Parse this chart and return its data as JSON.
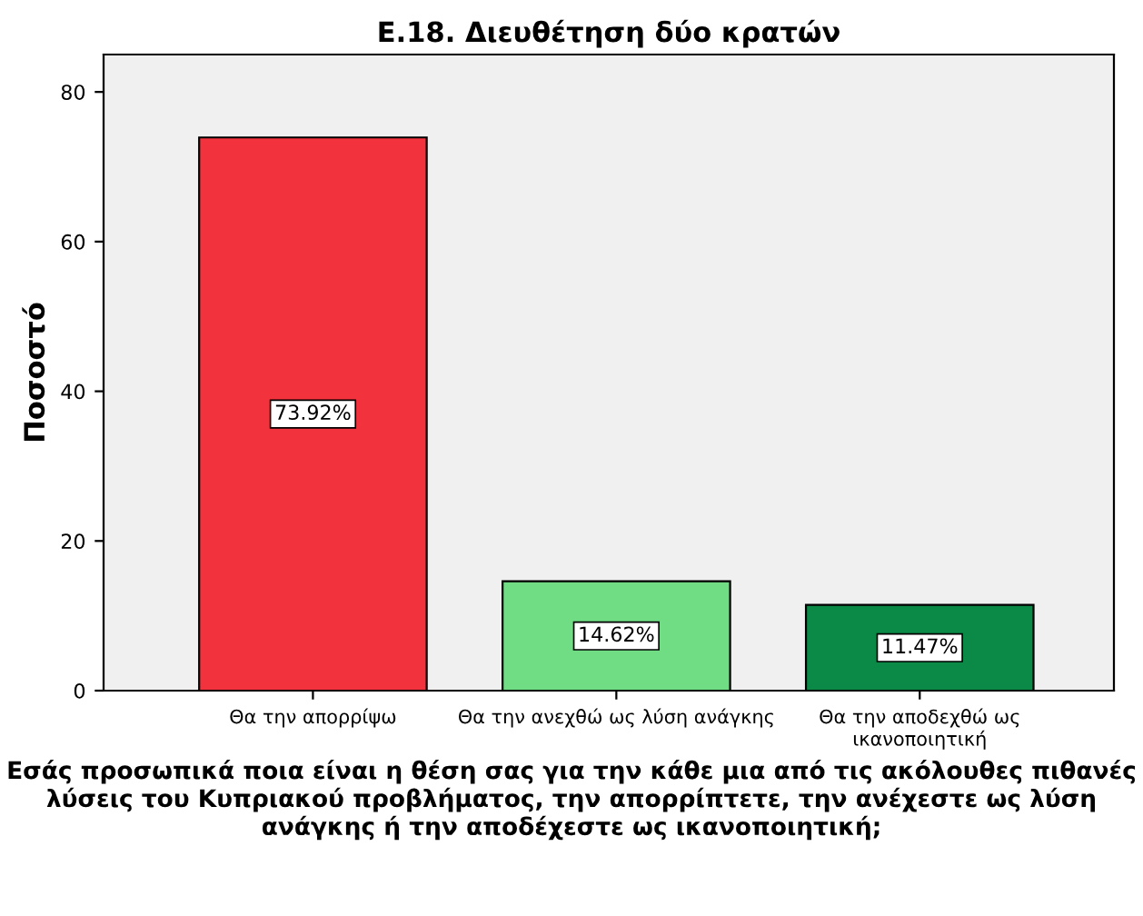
{
  "chart_data": {
    "type": "bar",
    "title": "Ε.18. Διευθέτηση δύο κρατών",
    "xlabel": "Εσάς προσωπικά ποια είναι η θέση σας για την κάθε μια από τις ακόλουθες πιθανές λύσεις του Κυπριακού προβλήματος, την απορρίπτετε, την ανέχεστε ως λύση ανάγκης ή την αποδέχεστε ως ικανοποιητική;",
    "ylabel": "Ποσοστό",
    "categories": [
      "Θα την απορρίψω",
      "Θα την ανεχθώ ως λύση ανάγκης",
      "Θα την αποδεχθώ ως\nικανοποιητική"
    ],
    "values": [
      73.92,
      14.62,
      11.47
    ],
    "colors": [
      "#f2323c",
      "#70dc84",
      "#0a8a46"
    ],
    "value_labels": [
      "73.92%",
      "14.62%",
      "11.47%"
    ],
    "ylim": [
      0,
      85
    ],
    "yticks": [
      0,
      20,
      40,
      60,
      80
    ],
    "grid": false,
    "legend": false
  }
}
